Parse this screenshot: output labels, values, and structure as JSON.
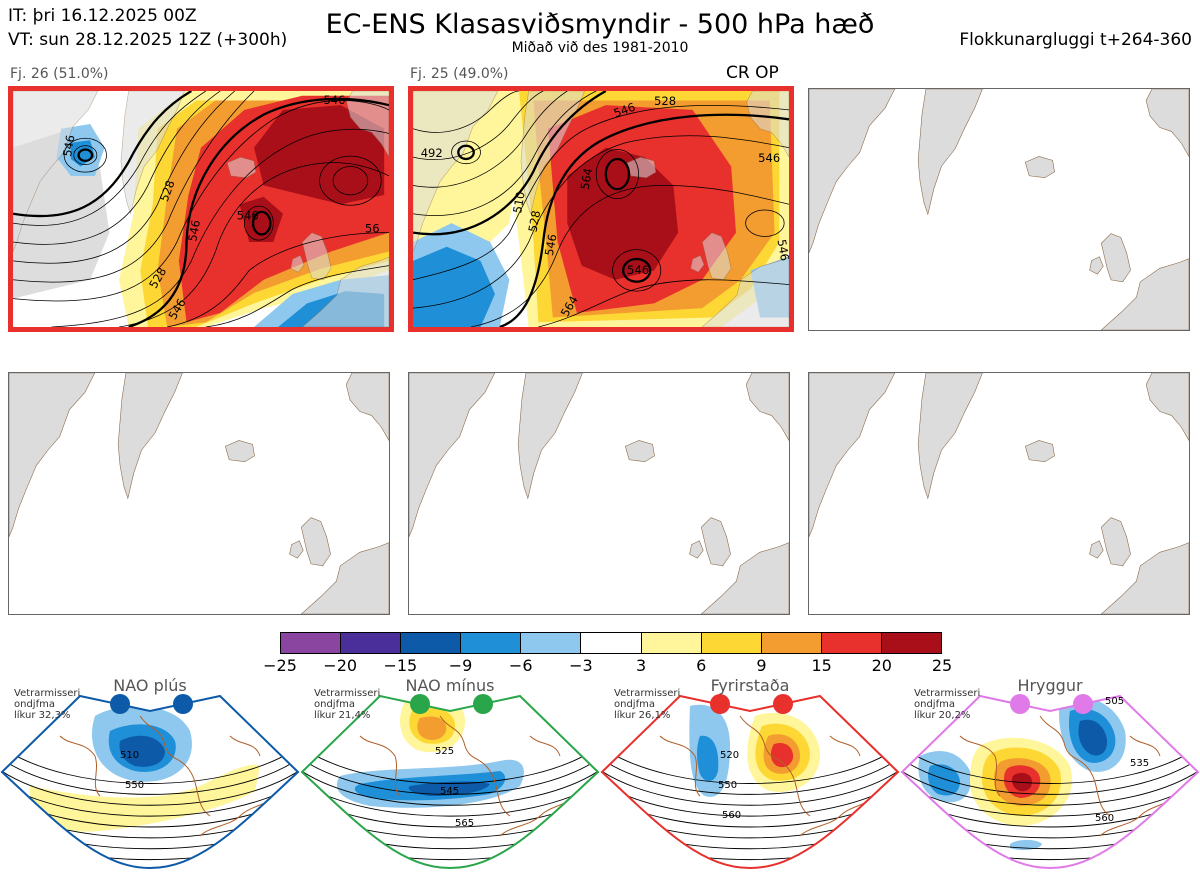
{
  "header": {
    "it_line": "IT: þri 16.12.2025 00Z",
    "vt_line": "VT: sun 28.12.2025 12Z  (+300h)",
    "title": "EC-ENS Klasasviðsmyndir - 500 hPa hæð",
    "subtitle": "Miðað við des 1981-2010",
    "window": "Flokkunargluggi t+264-360"
  },
  "panels": [
    {
      "label": "Fj. 26 (51.0%)",
      "highlighted": true
    },
    {
      "label": "Fj. 25 (49.0%)",
      "highlighted": true,
      "tag": "CR OP"
    }
  ],
  "contour_labels": {
    "p1": [
      "528",
      "546",
      "546",
      "528",
      "546",
      "546",
      "56",
      "546"
    ],
    "p2": [
      "528",
      "546",
      "546",
      "510",
      "528",
      "546",
      "564",
      "546",
      "564",
      "546",
      "492"
    ]
  },
  "colorbar": {
    "ticks": [
      "−25",
      "−20",
      "−15",
      "−9",
      "−6",
      "−3",
      "3",
      "6",
      "9",
      "15",
      "20",
      "25"
    ],
    "colors": [
      "#8a45a0",
      "#4a2f9a",
      "#0d5aa8",
      "#1f8fd8",
      "#8ec8ee",
      "#ffffff",
      "#fff59a",
      "#fdd835",
      "#f39c2f",
      "#e8302c",
      "#a80f19"
    ]
  },
  "regimes": [
    {
      "name": "NAO plús",
      "note": [
        "Vetrarmisseri",
        "ondjfma",
        "líkur 32,3%"
      ],
      "color": "#0d5aa8",
      "contours": [
        "510",
        "550"
      ]
    },
    {
      "name": "NAO mínus",
      "note": [
        "Vetrarmisseri",
        "ondjfma",
        "líkur 21,4%"
      ],
      "color": "#2aa64a",
      "contours": [
        "525",
        "545",
        "565"
      ]
    },
    {
      "name": "Fyrirstaða",
      "note": [
        "Vetrarmisseri",
        "ondjfma",
        "líkur 26,1%"
      ],
      "color": "#e8302c",
      "contours": [
        "520",
        "550",
        "560"
      ]
    },
    {
      "name": "Hryggur",
      "note": [
        "Vetrarmisseri",
        "ondjfma",
        "líkur 20,2%"
      ],
      "color": "#e07ae8",
      "contours": [
        "505",
        "535",
        "560"
      ]
    }
  ]
}
